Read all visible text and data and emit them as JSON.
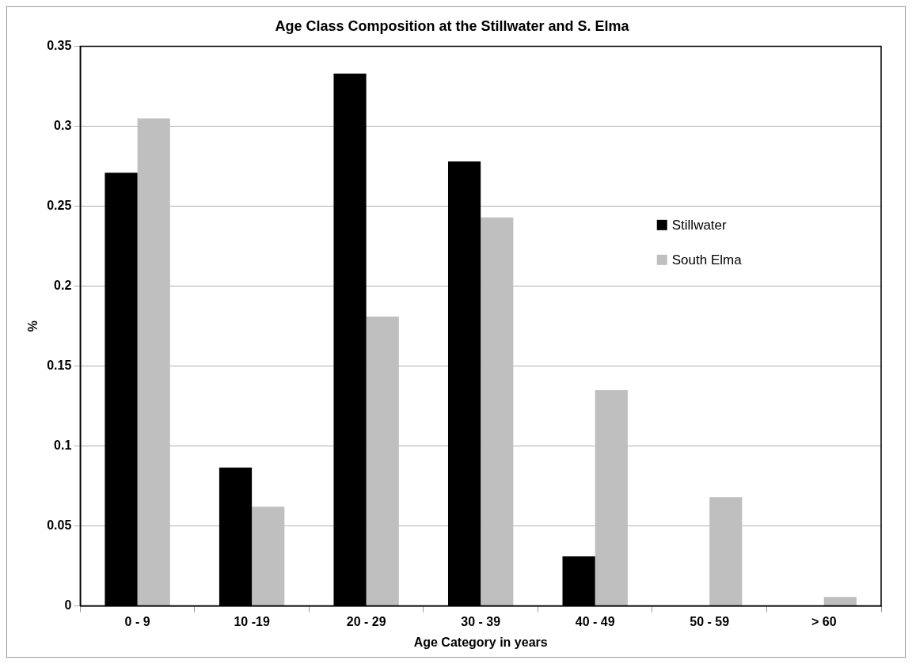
{
  "chart_data": {
    "type": "bar",
    "title": "Age Class Composition at the Stillwater and S. Elma",
    "xlabel": "Age Category in years",
    "ylabel": "%",
    "categories": [
      "0 - 9",
      "10 -19",
      "20 - 29",
      "30 - 39",
      "40 - 49",
      "50 - 59",
      "> 60"
    ],
    "series": [
      {
        "name": "Stillwater",
        "color": "#000000",
        "values": [
          0.271,
          0.0865,
          0.333,
          0.278,
          0.031,
          0,
          0
        ]
      },
      {
        "name": "South Elma",
        "color": "#bfbfbf",
        "values": [
          0.305,
          0.062,
          0.181,
          0.243,
          0.135,
          0.068,
          0.0056
        ]
      }
    ],
    "ylim": [
      0,
      0.35
    ],
    "yticks": [
      0,
      0.05,
      0.1,
      0.15,
      0.2,
      0.25,
      0.3,
      0.35
    ],
    "grid": "y",
    "legend": "right"
  }
}
